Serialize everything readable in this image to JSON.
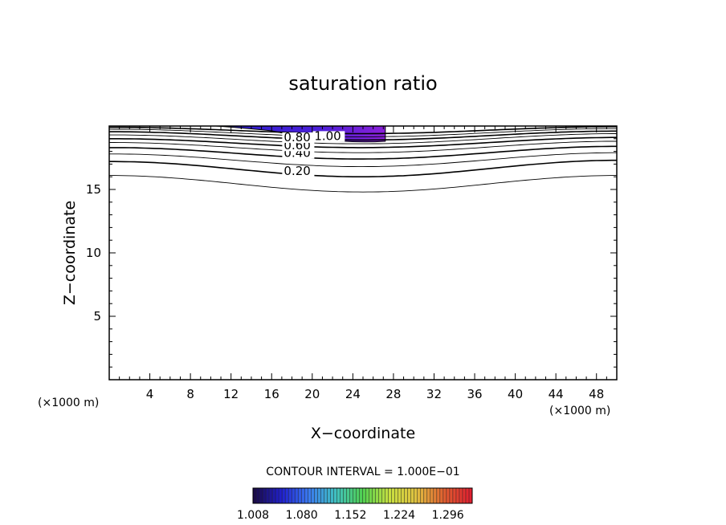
{
  "chart_data": {
    "type": "contour",
    "title": "saturation ratio",
    "xlabel": "X−coordinate",
    "ylabel": "Z−coordinate",
    "x_unit_left": "(×1000 m)",
    "x_unit_right": "(×1000 m)",
    "xlim": [
      0,
      50
    ],
    "ylim": [
      0,
      20
    ],
    "x_ticks": [
      4,
      8,
      12,
      16,
      20,
      24,
      28,
      32,
      36,
      40,
      44,
      48
    ],
    "x_tick_labels": [
      "4",
      "8",
      "12",
      "16",
      "20",
      "24",
      "28",
      "32",
      "36",
      "40",
      "44",
      "48"
    ],
    "y_ticks": [
      5,
      10,
      15
    ],
    "y_tick_labels": [
      "5",
      "10",
      "15"
    ],
    "contour_labels": [
      "0.20",
      "0.40",
      "0.60",
      "0.80",
      "1.00"
    ],
    "contours": [
      {
        "level": 0.1,
        "z_left": 16.1,
        "z_mid": 14.8,
        "z_right": 16.1
      },
      {
        "level": 0.2,
        "z_left": 17.2,
        "z_mid": 16.0,
        "z_right": 17.3
      },
      {
        "level": 0.3,
        "z_left": 17.8,
        "z_mid": 16.8,
        "z_right": 17.9
      },
      {
        "level": 0.4,
        "z_left": 18.3,
        "z_mid": 17.4,
        "z_right": 18.4
      },
      {
        "level": 0.5,
        "z_left": 18.7,
        "z_mid": 17.9,
        "z_right": 18.8
      },
      {
        "level": 0.6,
        "z_left": 19.0,
        "z_mid": 18.3,
        "z_right": 19.1
      },
      {
        "level": 0.7,
        "z_left": 19.3,
        "z_mid": 18.6,
        "z_right": 19.4
      },
      {
        "level": 0.8,
        "z_left": 19.55,
        "z_mid": 18.9,
        "z_right": 19.6
      },
      {
        "level": 0.9,
        "z_left": 19.75,
        "z_mid": 19.15,
        "z_right": 19.8
      },
      {
        "level": 1.0,
        "z_left": 19.9,
        "z_mid": 19.4,
        "z_right": 19.95
      }
    ],
    "filled_region": {
      "x_start": 10.5,
      "x_end": 27.2,
      "z_bottom": 18.8,
      "z_top": 20
    },
    "contour_interval_text": "CONTOUR INTERVAL = 1.000E−01",
    "colorbar": {
      "tick_labels": [
        "1.008",
        "1.080",
        "1.152",
        "1.224",
        "1.296"
      ],
      "range": [
        1.008,
        1.332
      ],
      "colors": [
        "#1a0a4a",
        "#2020d0",
        "#3a7af0",
        "#40c0c0",
        "#50d050",
        "#c8e040",
        "#e0c040",
        "#e06030",
        "#e02030"
      ]
    }
  }
}
